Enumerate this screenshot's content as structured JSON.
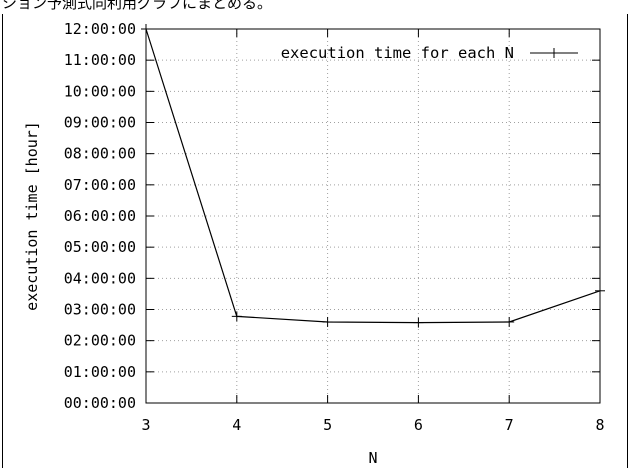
{
  "header_fragment": "ション予測式同利用グラフにまとめる。",
  "chart_data": {
    "type": "line",
    "xlabel": "N",
    "ylabel": "execution time [hour]",
    "x": [
      3,
      4,
      5,
      6,
      7,
      8
    ],
    "xlim": [
      3,
      8
    ],
    "xticks": [
      "3",
      "4",
      "5",
      "6",
      "7",
      "8"
    ],
    "ylim": [
      0,
      12
    ],
    "yticks": [
      "00:00:00",
      "01:00:00",
      "02:00:00",
      "03:00:00",
      "04:00:00",
      "05:00:00",
      "06:00:00",
      "07:00:00",
      "08:00:00",
      "09:00:00",
      "10:00:00",
      "11:00:00",
      "12:00:00"
    ],
    "series": [
      {
        "name": "execution time for each N",
        "values": [
          12.0,
          2.78,
          2.6,
          2.58,
          2.6,
          3.6
        ],
        "color": "#000000",
        "marker": "plus"
      }
    ],
    "grid": true,
    "legend_position": "top-right"
  }
}
